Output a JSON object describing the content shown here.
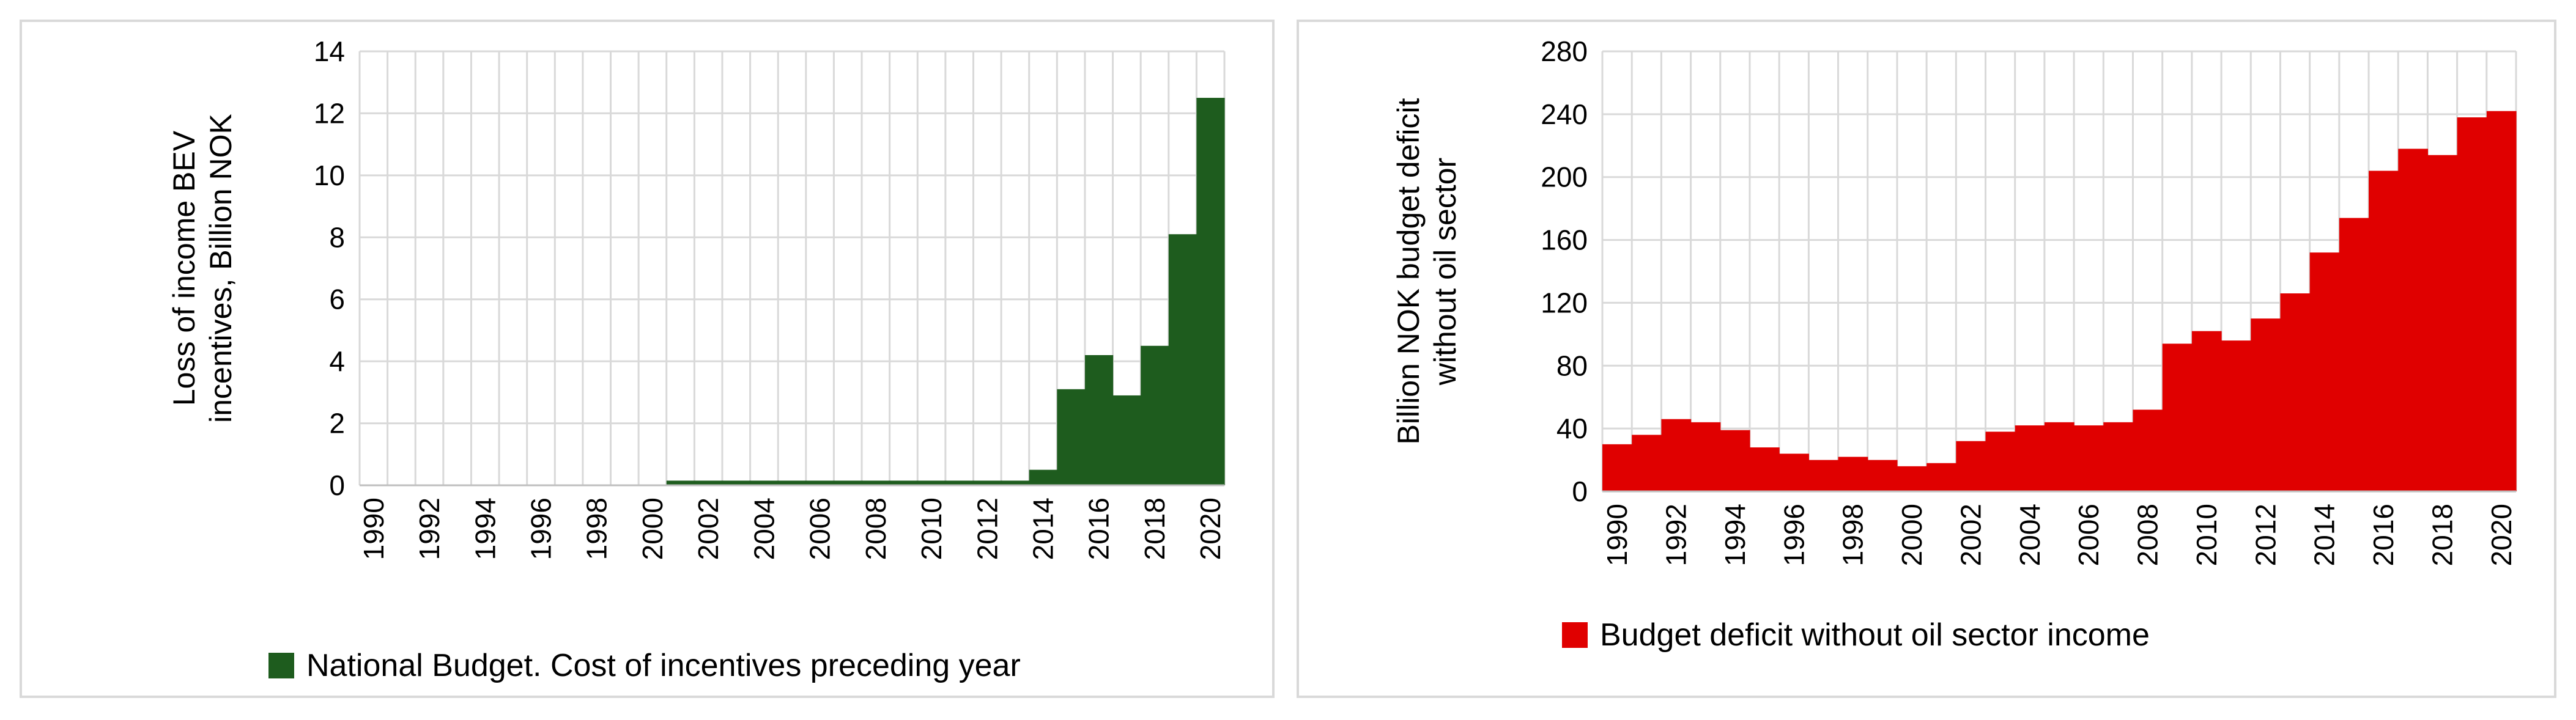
{
  "chart_data": [
    {
      "type": "area",
      "ylabel": [
        "Loss of income BEV",
        "incentives, Billion NOK"
      ],
      "ylim": [
        0,
        14
      ],
      "yticks": [
        0,
        2,
        4,
        6,
        8,
        10,
        12,
        14
      ],
      "x": [
        1990,
        1991,
        1992,
        1993,
        1994,
        1995,
        1996,
        1997,
        1998,
        1999,
        2000,
        2001,
        2002,
        2003,
        2004,
        2005,
        2006,
        2007,
        2008,
        2009,
        2010,
        2011,
        2012,
        2013,
        2014,
        2015,
        2016,
        2017,
        2018,
        2019,
        2020
      ],
      "xtick_labels": [
        "1990",
        "1992",
        "1994",
        "1996",
        "1998",
        "2000",
        "2002",
        "2004",
        "2006",
        "2008",
        "2010",
        "2012",
        "2014",
        "2016",
        "2018",
        "2020"
      ],
      "grid": true,
      "legend_position": "bottom",
      "series": [
        {
          "name": "National Budget. Cost of incentives preceding year",
          "color": "#1e5c1e",
          "values": [
            0,
            0,
            0,
            0,
            0,
            0,
            0,
            0,
            0,
            0,
            0,
            0.15,
            0.15,
            0.15,
            0.15,
            0.15,
            0.15,
            0.15,
            0.15,
            0.15,
            0.15,
            0.15,
            0.15,
            0.15,
            0.5,
            3.1,
            4.2,
            2.9,
            4.5,
            8.1,
            12.5
          ]
        }
      ]
    },
    {
      "type": "area",
      "ylabel": [
        "Billion NOK budget deficit",
        "without oil sector"
      ],
      "ylim": [
        0,
        280
      ],
      "yticks": [
        0,
        40,
        80,
        120,
        160,
        200,
        240,
        280
      ],
      "x": [
        1990,
        1991,
        1992,
        1993,
        1994,
        1995,
        1996,
        1997,
        1998,
        1999,
        2000,
        2001,
        2002,
        2003,
        2004,
        2005,
        2006,
        2007,
        2008,
        2009,
        2010,
        2011,
        2012,
        2013,
        2014,
        2015,
        2016,
        2017,
        2018,
        2019,
        2020
      ],
      "xtick_labels": [
        "1990",
        "1992",
        "1994",
        "1996",
        "1998",
        "2000",
        "2002",
        "2004",
        "2006",
        "2008",
        "2010",
        "2012",
        "2014",
        "2016",
        "2018",
        "2020"
      ],
      "grid": true,
      "legend_position": "bottom",
      "series": [
        {
          "name": "Budget deficit without oil sector income",
          "color": "#e00000",
          "values": [
            30,
            36,
            46,
            44,
            39,
            28,
            24,
            20,
            22,
            20,
            16,
            18,
            32,
            38,
            42,
            44,
            42,
            44,
            52,
            94,
            102,
            96,
            110,
            126,
            152,
            174,
            204,
            218,
            214,
            238,
            242
          ]
        }
      ]
    }
  ]
}
